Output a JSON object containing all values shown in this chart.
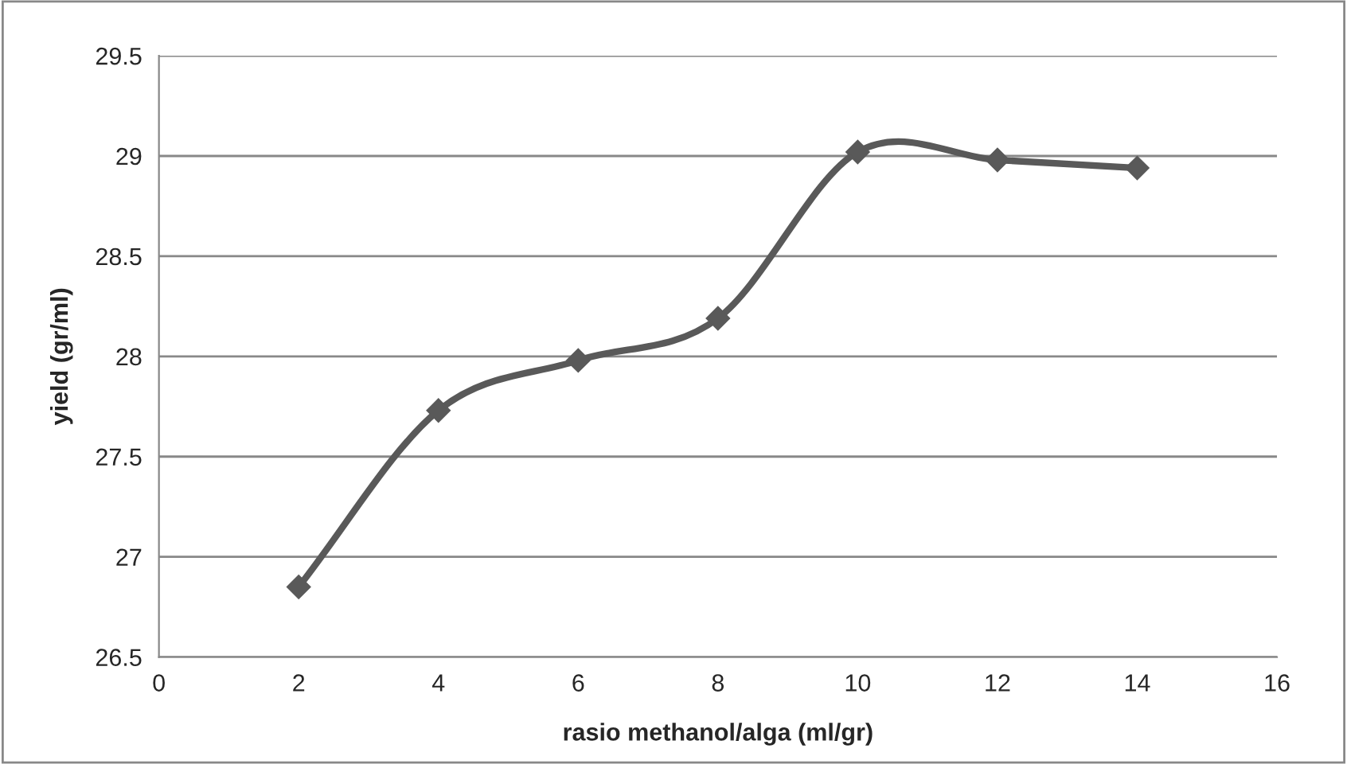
{
  "chart_data": {
    "type": "line",
    "xlabel": "rasio methanol/alga (ml/gr)",
    "ylabel": "yield (gr/ml)",
    "x": [
      2,
      4,
      6,
      8,
      10,
      12,
      14
    ],
    "series": [
      {
        "color": "#595959",
        "values": [
          26.85,
          27.73,
          27.98,
          28.19,
          29.02,
          28.98,
          28.94
        ]
      }
    ],
    "xlim": [
      0,
      16
    ],
    "xticks": [
      0,
      2,
      4,
      6,
      8,
      10,
      12,
      14,
      16
    ],
    "ylim": [
      26.5,
      29.5
    ],
    "yticks": [
      26.5,
      27,
      27.5,
      28,
      28.5,
      29,
      29.5
    ],
    "grid": "y",
    "marker": "diamond",
    "line_style": "solid",
    "legend": false
  }
}
